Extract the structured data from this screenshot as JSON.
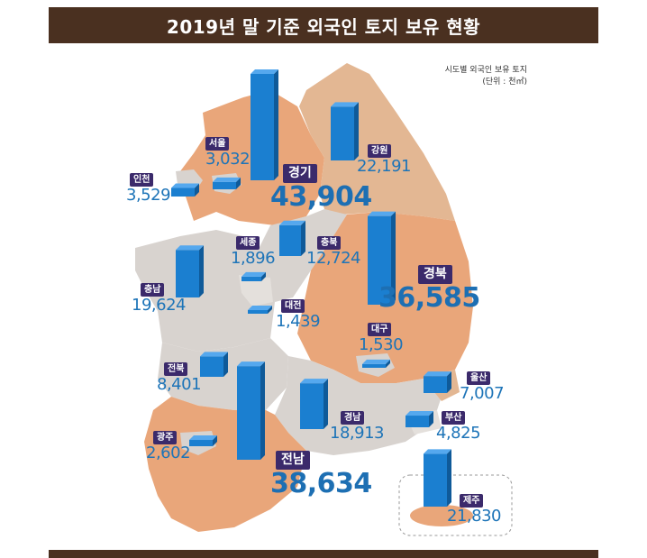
{
  "title": "2019년 말 기준 외국인 토지 보유 현황",
  "legend": {
    "line1": "시도별 외국인 보유 토지",
    "line2": "(단위 : 천㎡)"
  },
  "colors": {
    "title_bg": "#4a3020",
    "high_region": "#e9a67a",
    "mid_region": "#e3b793",
    "low_region": "#d8d3cf",
    "bar": "#1b7fd0",
    "badge": "#3b2a6b",
    "value_text": "#1d74b8"
  },
  "regions": {
    "seoul": {
      "name": "서울",
      "value": "3,032"
    },
    "gyeonggi": {
      "name": "경기",
      "value": "43,904"
    },
    "gangwon": {
      "name": "강원",
      "value": "22,191"
    },
    "incheon": {
      "name": "인천",
      "value": "3,529"
    },
    "sejong": {
      "name": "세종",
      "value": "1,896"
    },
    "chungbuk": {
      "name": "충북",
      "value": "12,724"
    },
    "gyeongbuk": {
      "name": "경북",
      "value": "36,585"
    },
    "chungnam": {
      "name": "충남",
      "value": "19,624"
    },
    "daejeon": {
      "name": "대전",
      "value": "1,439"
    },
    "daegu": {
      "name": "대구",
      "value": "1,530"
    },
    "jeonbuk": {
      "name": "전북",
      "value": "8,401"
    },
    "ulsan": {
      "name": "울산",
      "value": "7,007"
    },
    "gyeongnam": {
      "name": "경남",
      "value": "18,913"
    },
    "busan": {
      "name": "부산",
      "value": "4,825"
    },
    "gwangju": {
      "name": "광주",
      "value": "2,602"
    },
    "jeonnam": {
      "name": "전남",
      "value": "38,634"
    },
    "jeju": {
      "name": "제주",
      "value": "21,830"
    }
  }
}
